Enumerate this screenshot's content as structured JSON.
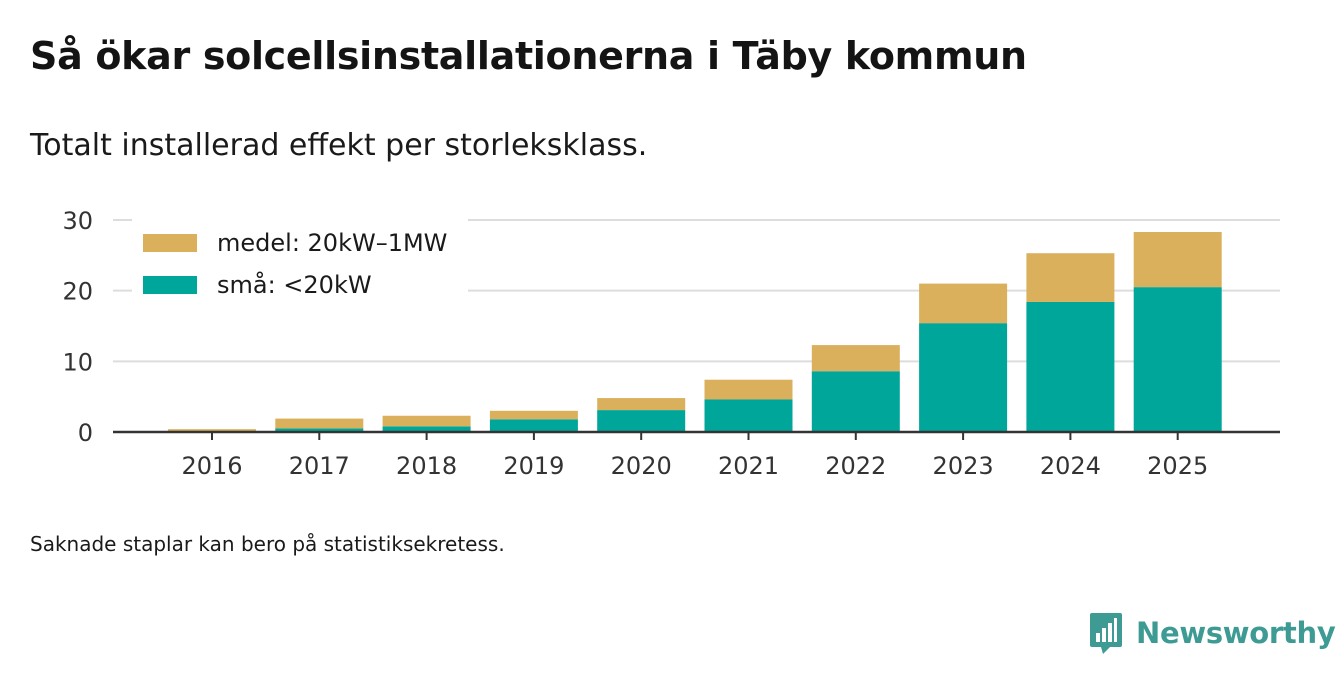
{
  "title": "Så ökar solcellsinstallationerna i Täby kommun",
  "subtitle": "Totalt installerad effekt per storleksklass.",
  "footnote": "Saknade staplar kan bero på statistiksekretess.",
  "brand": {
    "name": "Newsworthy",
    "icon": "newsworthy-logo-icon"
  },
  "colors": {
    "small": "#00a69a",
    "medium": "#dbb05c",
    "grid": "#dddddd",
    "axis": "#333333"
  },
  "chart_data": {
    "type": "bar",
    "stacked": true,
    "categories": [
      "2016",
      "2017",
      "2018",
      "2019",
      "2020",
      "2021",
      "2022",
      "2023",
      "2024",
      "2025"
    ],
    "series": [
      {
        "name": "små: <20kW",
        "key": "small",
        "values": [
          0.1,
          0.5,
          0.8,
          1.8,
          3.1,
          4.6,
          8.6,
          15.4,
          18.4,
          20.5
        ]
      },
      {
        "name": "medel: 20kW–1MW",
        "key": "medium",
        "values": [
          0.3,
          1.4,
          1.5,
          1.2,
          1.7,
          2.8,
          3.7,
          5.6,
          6.9,
          7.8
        ]
      }
    ],
    "legend": [
      {
        "label": "medel: 20kW–1MW",
        "key": "medium"
      },
      {
        "label": "små: <20kW",
        "key": "small"
      }
    ],
    "yticks": [
      "0",
      "10",
      "20",
      "30"
    ],
    "ylim": [
      0,
      30
    ],
    "xlabel": "",
    "ylabel": "",
    "grid": true,
    "legend_position": "top-left"
  }
}
